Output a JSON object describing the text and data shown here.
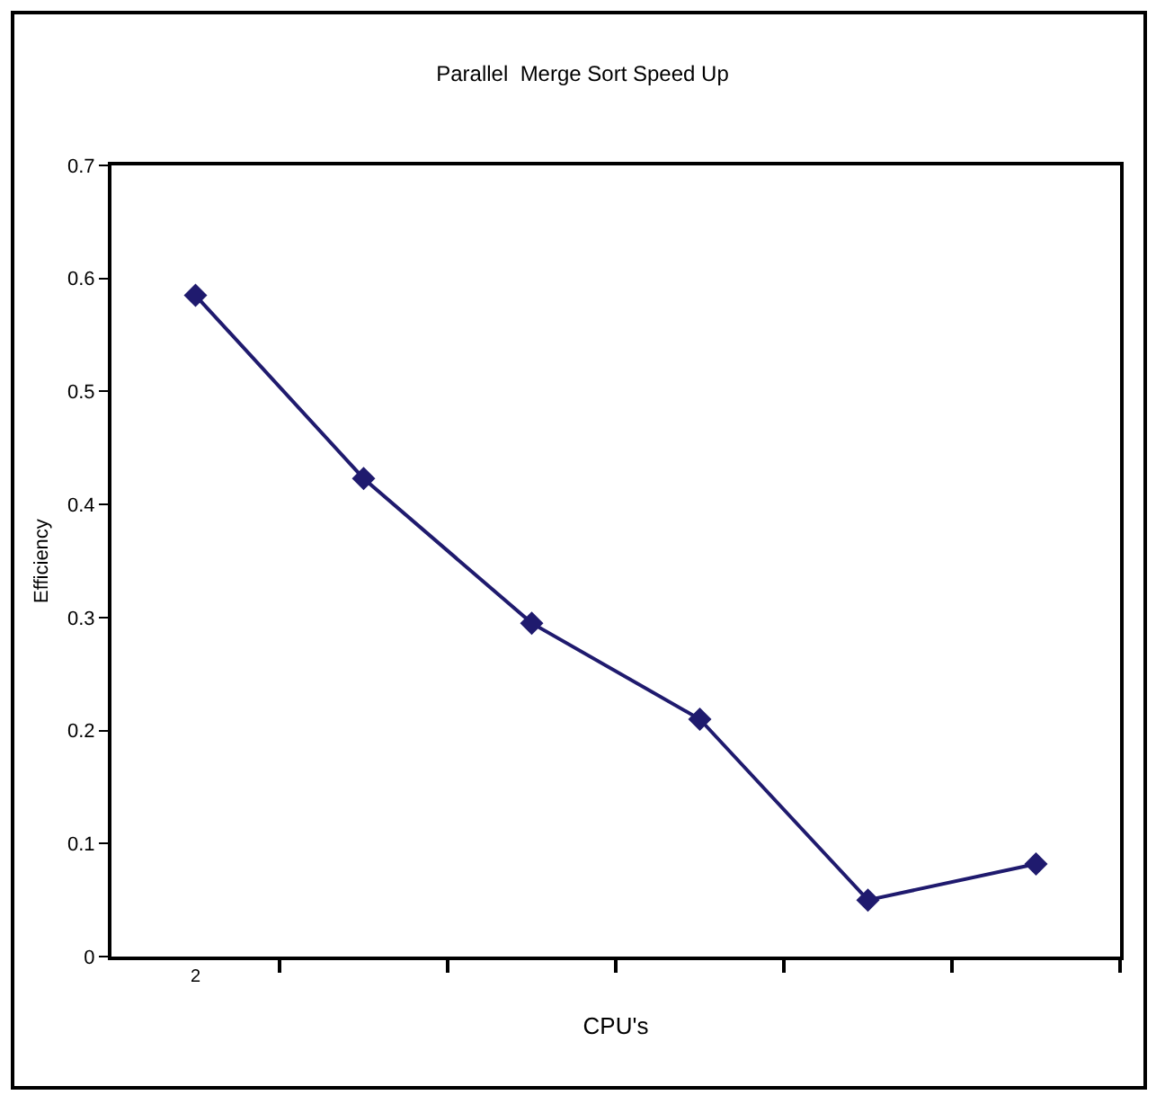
{
  "chart_data": {
    "type": "line",
    "title": "Parallel  Merge Sort Speed Up",
    "xlabel": "CPU's",
    "ylabel": "Efficiency",
    "categories": [
      "2",
      null,
      null,
      null,
      null,
      null
    ],
    "series": [
      {
        "color": "#1f1a6e",
        "values": [
          0.585,
          0.423,
          0.295,
          0.21,
          0.05,
          0.082
        ]
      }
    ],
    "ylim": [
      0,
      0.7
    ],
    "yticks": [
      0,
      0.1,
      0.2,
      0.3,
      0.4,
      0.5,
      0.6,
      0.7
    ],
    "marker": "diamond",
    "line_style": "solid",
    "grid": false
  }
}
